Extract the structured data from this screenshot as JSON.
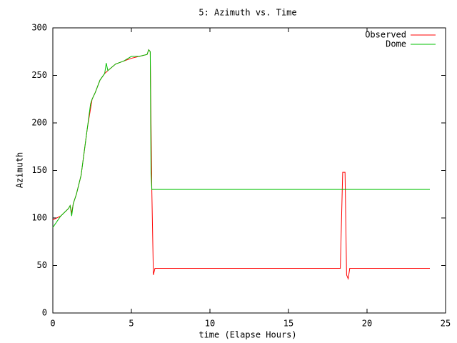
{
  "chart_data": {
    "type": "line",
    "title": "5: Azimuth vs. Time",
    "x_label": "time (Elapse Hours)",
    "y_label": "Azimuth",
    "xlim": [
      0,
      25
    ],
    "xticks": [
      0,
      5,
      10,
      15,
      20,
      25
    ],
    "ylim": [
      0,
      300
    ],
    "yticks": [
      0,
      50,
      100,
      150,
      200,
      250,
      300
    ],
    "legend": "top-right",
    "series": [
      {
        "name": "Observed",
        "color": "#ff0000",
        "x": [
          0,
          0.5,
          1.0,
          1.1,
          1.2,
          1.3,
          1.5,
          1.8,
          2.0,
          2.2,
          2.4,
          2.5,
          2.7,
          3.0,
          3.3,
          3.5,
          4.0,
          4.5,
          5.0,
          5.5,
          6.0,
          6.1,
          6.2,
          6.25,
          6.3,
          6.4,
          6.5,
          18.3,
          18.45,
          18.6,
          18.7,
          18.8,
          18.9,
          24
        ],
        "values": [
          98,
          102,
          110,
          113,
          105,
          115,
          125,
          145,
          170,
          195,
          215,
          225,
          232,
          245,
          252,
          255,
          262,
          265,
          268,
          270,
          272,
          277,
          275,
          200,
          130,
          40,
          47,
          47,
          148,
          148,
          40,
          36,
          47,
          47
        ]
      },
      {
        "name": "Dome",
        "color": "#00c000",
        "x": [
          0,
          0.5,
          1.0,
          1.1,
          1.2,
          1.3,
          1.5,
          1.8,
          2.0,
          2.2,
          2.4,
          2.5,
          2.7,
          3.0,
          3.3,
          3.4,
          3.5,
          4.0,
          4.5,
          5.0,
          5.5,
          6.0,
          6.1,
          6.2,
          6.25,
          6.3,
          24
        ],
        "values": [
          90,
          102,
          110,
          113,
          102,
          115,
          125,
          145,
          170,
          195,
          220,
          225,
          232,
          245,
          252,
          263,
          255,
          262,
          265,
          270,
          270,
          272,
          277,
          275,
          147,
          130,
          130
        ]
      }
    ]
  }
}
